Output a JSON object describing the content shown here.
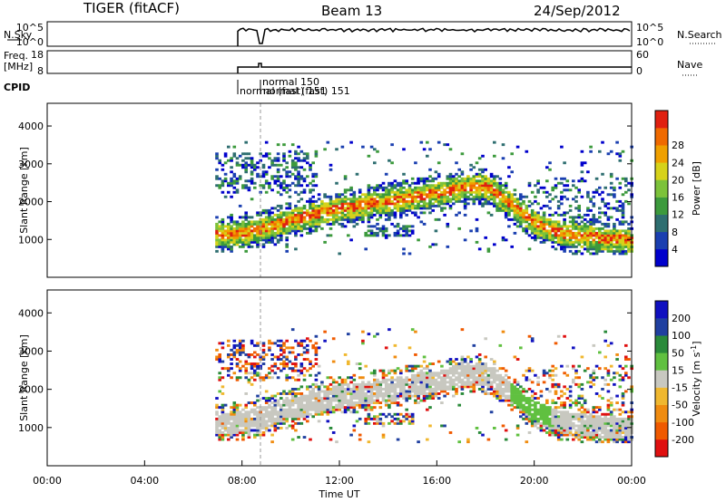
{
  "header": {
    "title": "TIGER (fitACF)",
    "beam": "Beam 13",
    "date": "24/Sep/2012"
  },
  "panels": {
    "nsky": {
      "label": "N.Sky",
      "right_label": "N.Search",
      "left_ticks": [
        "10^5",
        "10^0"
      ],
      "right_ticks": [
        "10^5",
        "10^0"
      ]
    },
    "freq": {
      "label_top": "Freq.",
      "label_bottom": "[MHz]",
      "right_label": "Nave",
      "left_ticks": [
        "18",
        "8"
      ],
      "right_ticks": [
        "60",
        "0"
      ]
    },
    "cpid": {
      "label": "CPID",
      "entries": [
        "normal 150",
        "normal (fast) 151",
        "normal (fast) 151"
      ]
    }
  },
  "chart_data": [
    {
      "type": "heatmap",
      "name": "power",
      "ylabel": "Slant Range [km]",
      "ylim": [
        0,
        4600
      ],
      "yticks": [
        1000,
        2000,
        3000,
        4000
      ],
      "colorbar": {
        "label": "Power [dB]",
        "ticks": [
          4,
          8,
          12,
          16,
          20,
          24,
          28
        ],
        "range": [
          0,
          30
        ],
        "colors": [
          "#0000cc",
          "#1a3fb0",
          "#2e6e70",
          "#3c9a3c",
          "#7cc23a",
          "#d6d21a",
          "#f0a000",
          "#f06a00",
          "#e02010"
        ]
      },
      "bands": [
        {
          "name": "main-echo",
          "x": [
            6.9,
            8,
            9,
            10,
            11,
            12,
            13,
            14,
            15,
            16,
            17,
            17.6,
            18.2,
            19,
            20,
            21,
            22,
            24
          ],
          "y": [
            1100,
            1150,
            1300,
            1500,
            1650,
            1800,
            1900,
            2000,
            2100,
            2200,
            2350,
            2400,
            2300,
            1900,
            1400,
            1150,
            1050,
            950
          ]
        }
      ]
    },
    {
      "type": "heatmap",
      "name": "velocity",
      "xlabel": "Time UT",
      "ylabel": "Slant Range [km]",
      "ylim": [
        0,
        4600
      ],
      "yticks": [
        1000,
        2000,
        3000,
        4000
      ],
      "xlim": [
        0,
        24
      ],
      "xticks": [
        "00:00",
        "04:00",
        "08:00",
        "12:00",
        "16:00",
        "20:00",
        "00:00"
      ],
      "colorbar": {
        "label": "Velocity [m s",
        "label_sup": "-1",
        "label_end": "]",
        "ticks": [
          -200,
          -100,
          -50,
          -15,
          15,
          50,
          100,
          200
        ],
        "colors": [
          "#e01010",
          "#f05a00",
          "#f08c10",
          "#f0b830",
          "#c8c8c0",
          "#60c040",
          "#2a8a3a",
          "#2040a0",
          "#1010c0"
        ]
      }
    }
  ]
}
